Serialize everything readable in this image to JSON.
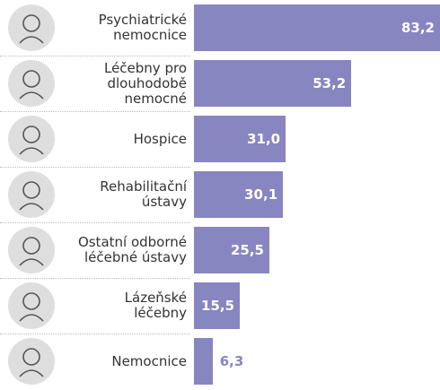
{
  "chart_data": {
    "type": "bar",
    "orientation": "horizontal",
    "categories": [
      "Psychiatrické\nnemocnice",
      "Léčebny pro\ndlouhodobě\nnemocné",
      "Hospice",
      "Rehabilitační\nústavy",
      "Ostatní odborné\nléčebné ústavy",
      "Lázeňské\nléčebny",
      "Nemocnice"
    ],
    "values": [
      83.2,
      53.2,
      31.0,
      30.1,
      25.5,
      15.5,
      6.3
    ],
    "value_labels": [
      "83,2",
      "53,2",
      "31,0",
      "30,1",
      "25,5",
      "15,5",
      "6,3"
    ],
    "color": "#8886c0"
  }
}
